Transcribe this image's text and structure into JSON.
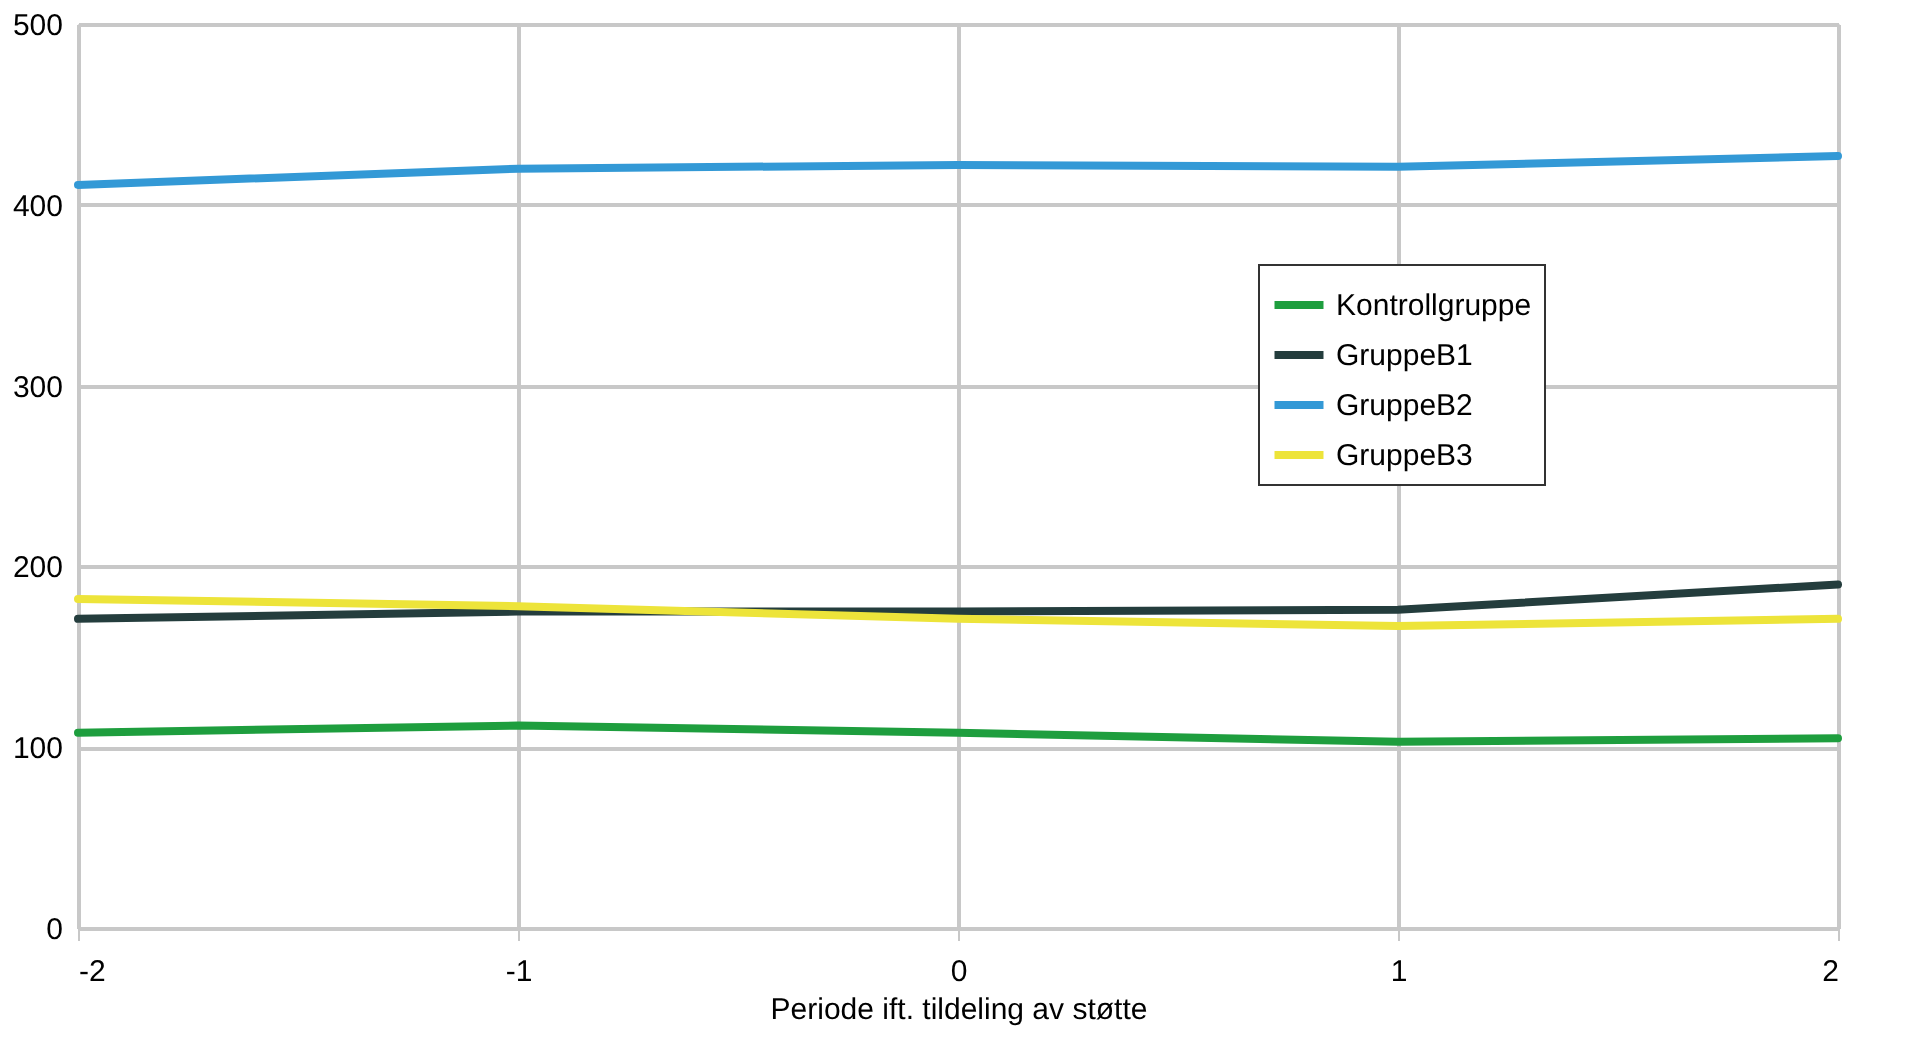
{
  "chart_data": {
    "type": "line",
    "xlabel": "Periode ift. tildeling av støtte",
    "x": [
      -2,
      -1,
      0,
      1,
      2
    ],
    "xlim": [
      -2,
      2
    ],
    "xticks": [
      -2,
      -1,
      0,
      1,
      2
    ],
    "ylim": [
      0,
      500
    ],
    "yticks": [
      0,
      100,
      200,
      300,
      400,
      500
    ],
    "grid": true,
    "legend": "right",
    "marker": "none",
    "line_style": "solid",
    "series": [
      {
        "name": "Kontrollgruppe",
        "color": "#1e9e3e",
        "values": [
          108,
          112,
          108,
          103,
          105
        ]
      },
      {
        "name": "GruppeB1",
        "color": "#243d3d",
        "values": [
          171,
          175,
          175,
          176,
          190
        ]
      },
      {
        "name": "GruppeB2",
        "color": "#3399d6",
        "values": [
          411,
          420,
          422,
          421,
          427
        ]
      },
      {
        "name": "GruppeB3",
        "color": "#ede43a",
        "values": [
          182,
          178,
          171,
          167,
          171
        ]
      }
    ]
  }
}
